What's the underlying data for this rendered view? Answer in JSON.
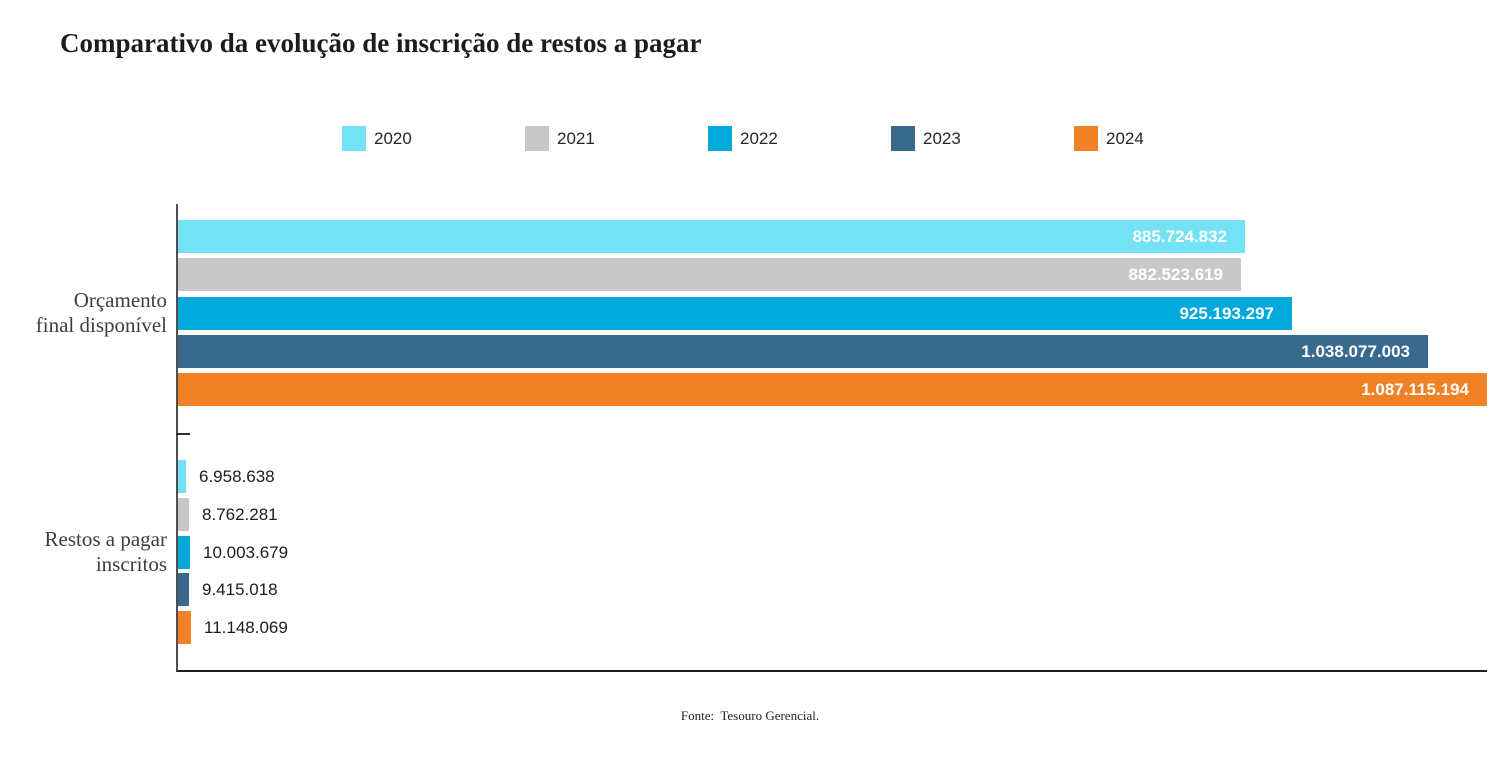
{
  "title": "Comparativo da evolução de inscrição de restos a pagar",
  "footer": "Fonte:  Tesouro Gerencial.",
  "chart_data": {
    "type": "bar",
    "orientation": "horizontal",
    "title": "Comparativo da evolução de inscrição de restos a pagar",
    "legend_position": "top",
    "grid": false,
    "xmax": 1087115194,
    "categories": [
      "Orçamento final disponível",
      "Restos a pagar inscritos"
    ],
    "categories_lines": [
      [
        "Orçamento",
        "final disponível"
      ],
      [
        "Restos a pagar",
        "inscritos"
      ]
    ],
    "series": [
      {
        "name": "2020",
        "color": "#72E2F4",
        "values": [
          885724832,
          6958638
        ],
        "labels": [
          "885.724.832",
          "6.958.638"
        ]
      },
      {
        "name": "2021",
        "color": "#C8C8C8",
        "values": [
          882523619,
          8762281
        ],
        "labels": [
          "882.523.619",
          "8.762.281"
        ]
      },
      {
        "name": "2022",
        "color": "#00A9DC",
        "values": [
          925193297,
          10003679
        ],
        "labels": [
          "925.193.297",
          "10.003.679"
        ]
      },
      {
        "name": "2023",
        "color": "#39698C",
        "values": [
          1038077003,
          9415018
        ],
        "labels": [
          "1.038.077.003",
          "9.415.018"
        ]
      },
      {
        "name": "2024",
        "color": "#F08125",
        "values": [
          1087115194,
          11148069
        ],
        "labels": [
          "1.087.115.194",
          "11.148.069"
        ]
      }
    ],
    "source": "Tesouro Gerencial."
  }
}
